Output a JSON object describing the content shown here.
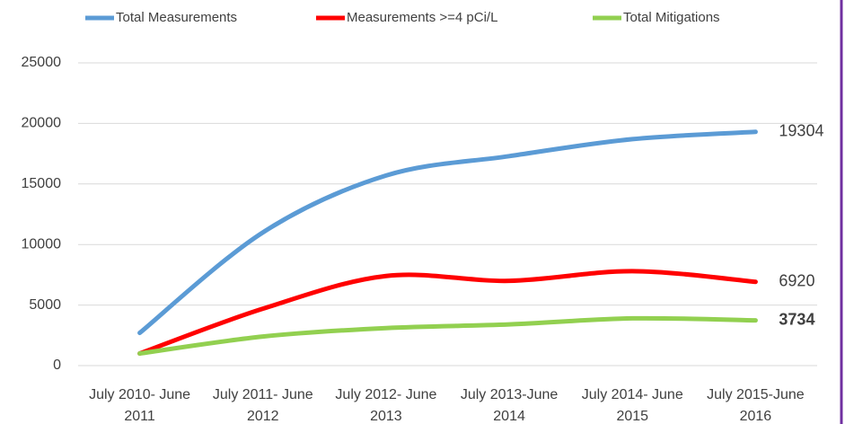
{
  "chart_data": {
    "type": "line",
    "categories": [
      [
        "July 2010- June",
        "2011"
      ],
      [
        "July 2011- June",
        "2012"
      ],
      [
        "July 2012- June",
        "2013"
      ],
      [
        "July 2013-June",
        "2014"
      ],
      [
        "July 2014- June",
        "2015"
      ],
      [
        "July 2015-June",
        "2016"
      ]
    ],
    "series": [
      {
        "name": "Total Measurements",
        "color": "#5b9bd5",
        "values": [
          2700,
          11000,
          15700,
          17300,
          18700,
          19304
        ]
      },
      {
        "name": "Measurements >=4 pCi/L",
        "color": "#ff0000",
        "values": [
          1000,
          4700,
          7400,
          7000,
          7800,
          6920
        ]
      },
      {
        "name": "Total Mitigations",
        "color": "#92d050",
        "values": [
          1000,
          2400,
          3100,
          3400,
          3900,
          3734
        ]
      }
    ],
    "ylim": [
      0,
      25000
    ],
    "yticks": [
      0,
      5000,
      10000,
      15000,
      20000,
      25000
    ],
    "grid": true,
    "legend": "top",
    "data_labels": "last",
    "smooth": true
  }
}
